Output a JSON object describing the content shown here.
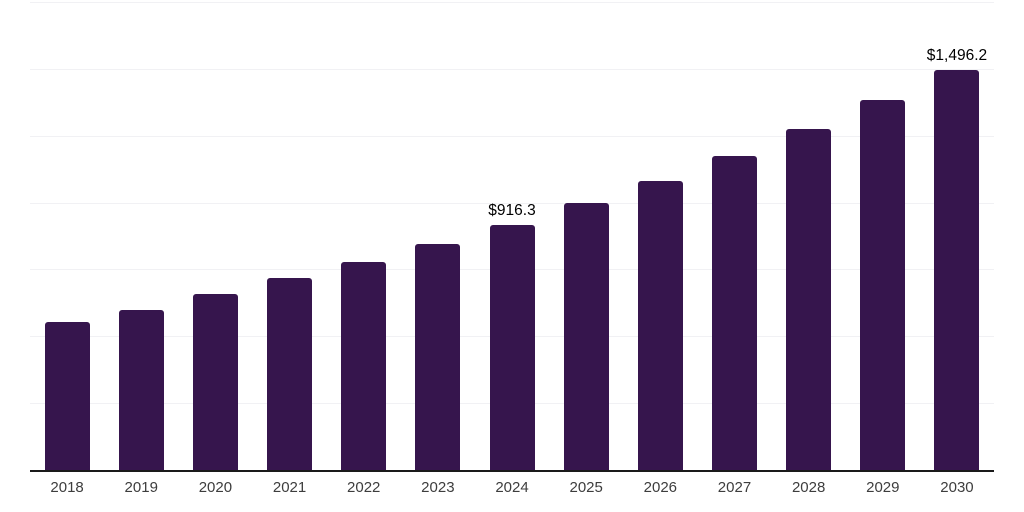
{
  "chart_data": {
    "type": "bar",
    "title": "",
    "xlabel": "",
    "ylabel": "",
    "categories": [
      "2018",
      "2019",
      "2020",
      "2021",
      "2022",
      "2023",
      "2024",
      "2025",
      "2026",
      "2027",
      "2028",
      "2029",
      "2030"
    ],
    "values": [
      553,
      598,
      660,
      718,
      778,
      845,
      916.3,
      998,
      1081,
      1174,
      1275,
      1383,
      1496.2
    ],
    "data_labels": {
      "2024": "$916.3",
      "2030": "$1,496.2"
    },
    "ylim": [
      0,
      1750
    ],
    "gridline_step": 250,
    "grid": true,
    "legend": false,
    "colors": {
      "bar": "#36154d",
      "axis": "#1a1a1a",
      "gridline": "#f1f1f4",
      "tick_label": "#3d3d3d",
      "data_label": "#000000"
    }
  }
}
